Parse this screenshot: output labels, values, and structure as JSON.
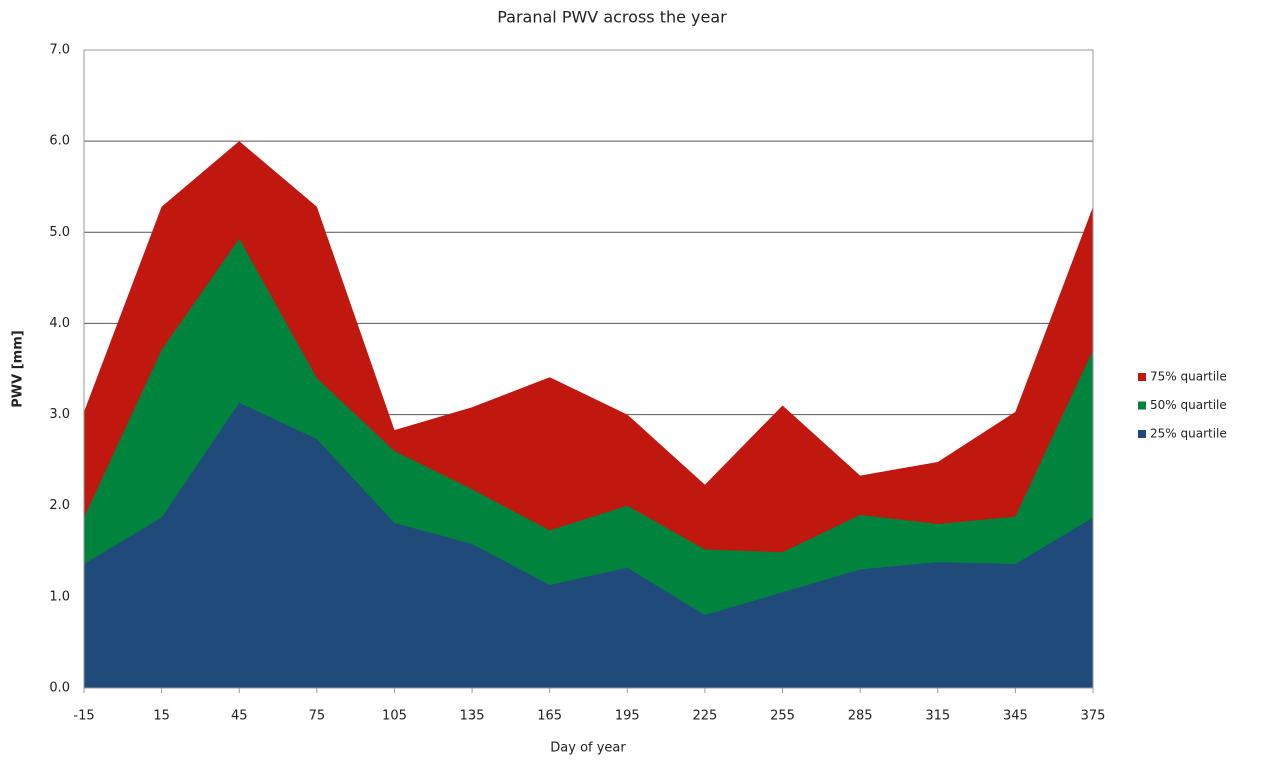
{
  "chart_data": {
    "type": "area",
    "title": "Paranal PWV across the year",
    "xlabel": "Day of year",
    "ylabel": "PWV [mm]",
    "x": [
      -15,
      15,
      45,
      75,
      105,
      135,
      165,
      195,
      225,
      255,
      285,
      315,
      345,
      375
    ],
    "xlim": [
      -15,
      375
    ],
    "xticks": [
      -15,
      15,
      45,
      75,
      105,
      135,
      165,
      195,
      225,
      255,
      285,
      315,
      345,
      375
    ],
    "ylim": [
      0,
      7
    ],
    "yticks": [
      {
        "value": 0,
        "label": "0.0"
      },
      {
        "value": 1,
        "label": "1.0"
      },
      {
        "value": 2,
        "label": "2.0"
      },
      {
        "value": 3,
        "label": "3.0"
      },
      {
        "value": 4,
        "label": "4.0"
      },
      {
        "value": 5,
        "label": "5.0"
      },
      {
        "value": 6,
        "label": "6.0"
      },
      {
        "value": 7,
        "label": "7.0"
      }
    ],
    "grid": true,
    "legend": "right",
    "series": [
      {
        "name": "75% quartile",
        "color": "#c0170f",
        "values": [
          3.03,
          5.28,
          6.0,
          5.28,
          2.83,
          3.08,
          3.41,
          3.0,
          2.23,
          3.1,
          2.33,
          2.48,
          3.03,
          5.28
        ]
      },
      {
        "name": "50% quartile",
        "color": "#00843d",
        "values": [
          1.87,
          3.71,
          4.93,
          3.4,
          2.6,
          2.18,
          1.73,
          2.0,
          1.52,
          1.49,
          1.9,
          1.8,
          1.88,
          3.71
        ]
      },
      {
        "name": "25% quartile",
        "color": "#204a7a",
        "values": [
          1.36,
          1.87,
          3.13,
          2.73,
          1.81,
          1.58,
          1.13,
          1.32,
          0.8,
          1.05,
          1.3,
          1.38,
          1.36,
          1.87
        ]
      }
    ]
  }
}
